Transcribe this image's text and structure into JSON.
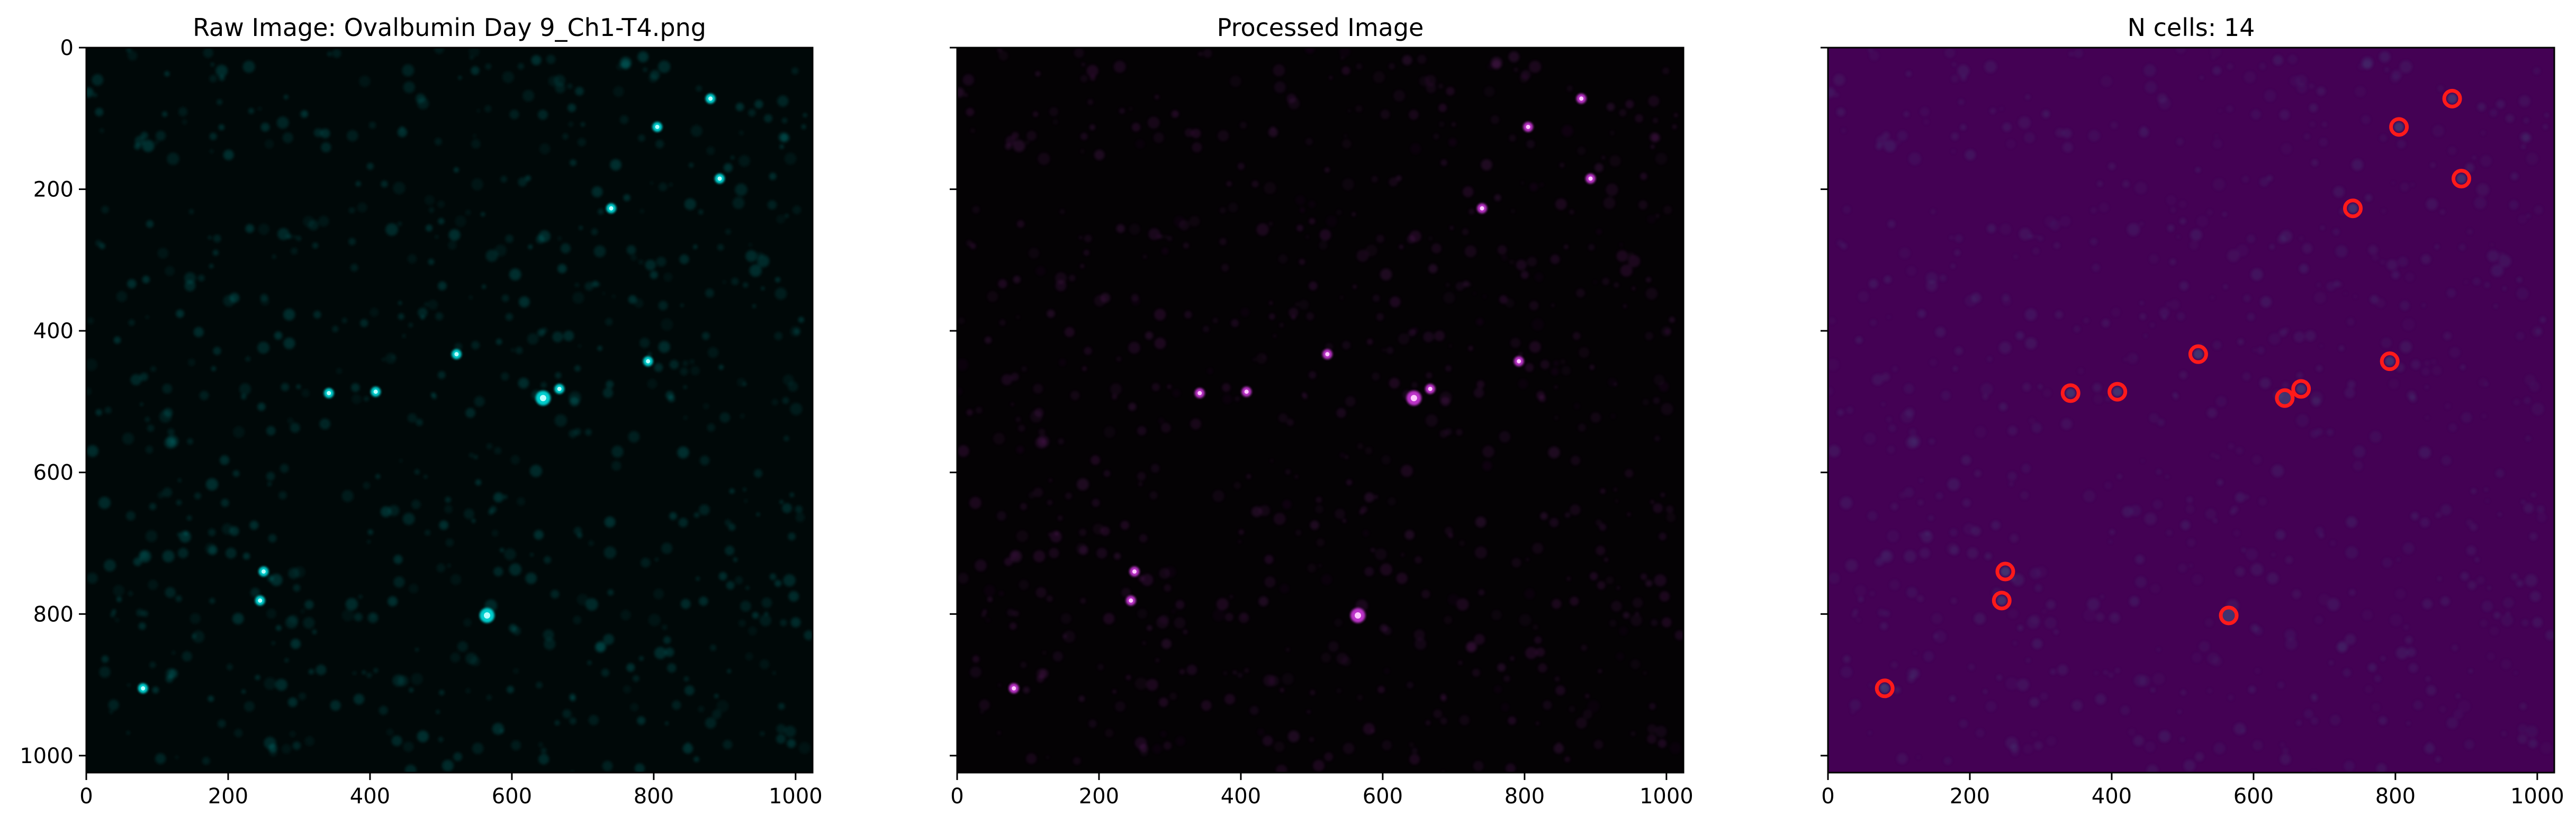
{
  "chart_data": [
    {
      "type": "image",
      "title": "Raw Image: Ovalbumin Day 9_Ch1-T4.png",
      "colormap": "cyan on black",
      "background_color": "#000808",
      "spot_color": "#00e5e5",
      "xlim": [
        0,
        1024
      ],
      "ylim": [
        1024,
        0
      ],
      "xticks": [
        0,
        200,
        400,
        600,
        800,
        1000
      ],
      "yticks": [
        0,
        200,
        400,
        600,
        800,
        1000
      ],
      "show_y_tick_labels": true
    },
    {
      "type": "image",
      "title": "Processed Image",
      "colormap": "magenta on black",
      "background_color": "#040204",
      "spot_color": "#d23ae0",
      "xlim": [
        0,
        1024
      ],
      "ylim": [
        1024,
        0
      ],
      "xticks": [
        0,
        200,
        400,
        600,
        800,
        1000
      ],
      "yticks": [
        0,
        200,
        400,
        600,
        800,
        1000
      ],
      "show_y_tick_labels": false
    },
    {
      "type": "scatter",
      "title": "N cells: 14",
      "colormap": "viridis-like purple",
      "background_color": "#440154",
      "spot_color": "#3f6f8f",
      "marker_color": "#ff1a1a",
      "xlim": [
        0,
        1024
      ],
      "ylim": [
        1024,
        0
      ],
      "xticks": [
        0,
        200,
        400,
        600,
        800,
        1000
      ],
      "yticks": [
        0,
        200,
        400,
        600,
        800,
        1000
      ],
      "show_y_tick_labels": false,
      "points": [
        {
          "x": 880,
          "y": 72
        },
        {
          "x": 805,
          "y": 112
        },
        {
          "x": 893,
          "y": 185
        },
        {
          "x": 740,
          "y": 227
        },
        {
          "x": 522,
          "y": 433
        },
        {
          "x": 792,
          "y": 443
        },
        {
          "x": 342,
          "y": 488
        },
        {
          "x": 408,
          "y": 486
        },
        {
          "x": 667,
          "y": 482
        },
        {
          "x": 644,
          "y": 495
        },
        {
          "x": 250,
          "y": 740
        },
        {
          "x": 245,
          "y": 781
        },
        {
          "x": 565,
          "y": 802
        },
        {
          "x": 80,
          "y": 905
        }
      ]
    }
  ]
}
